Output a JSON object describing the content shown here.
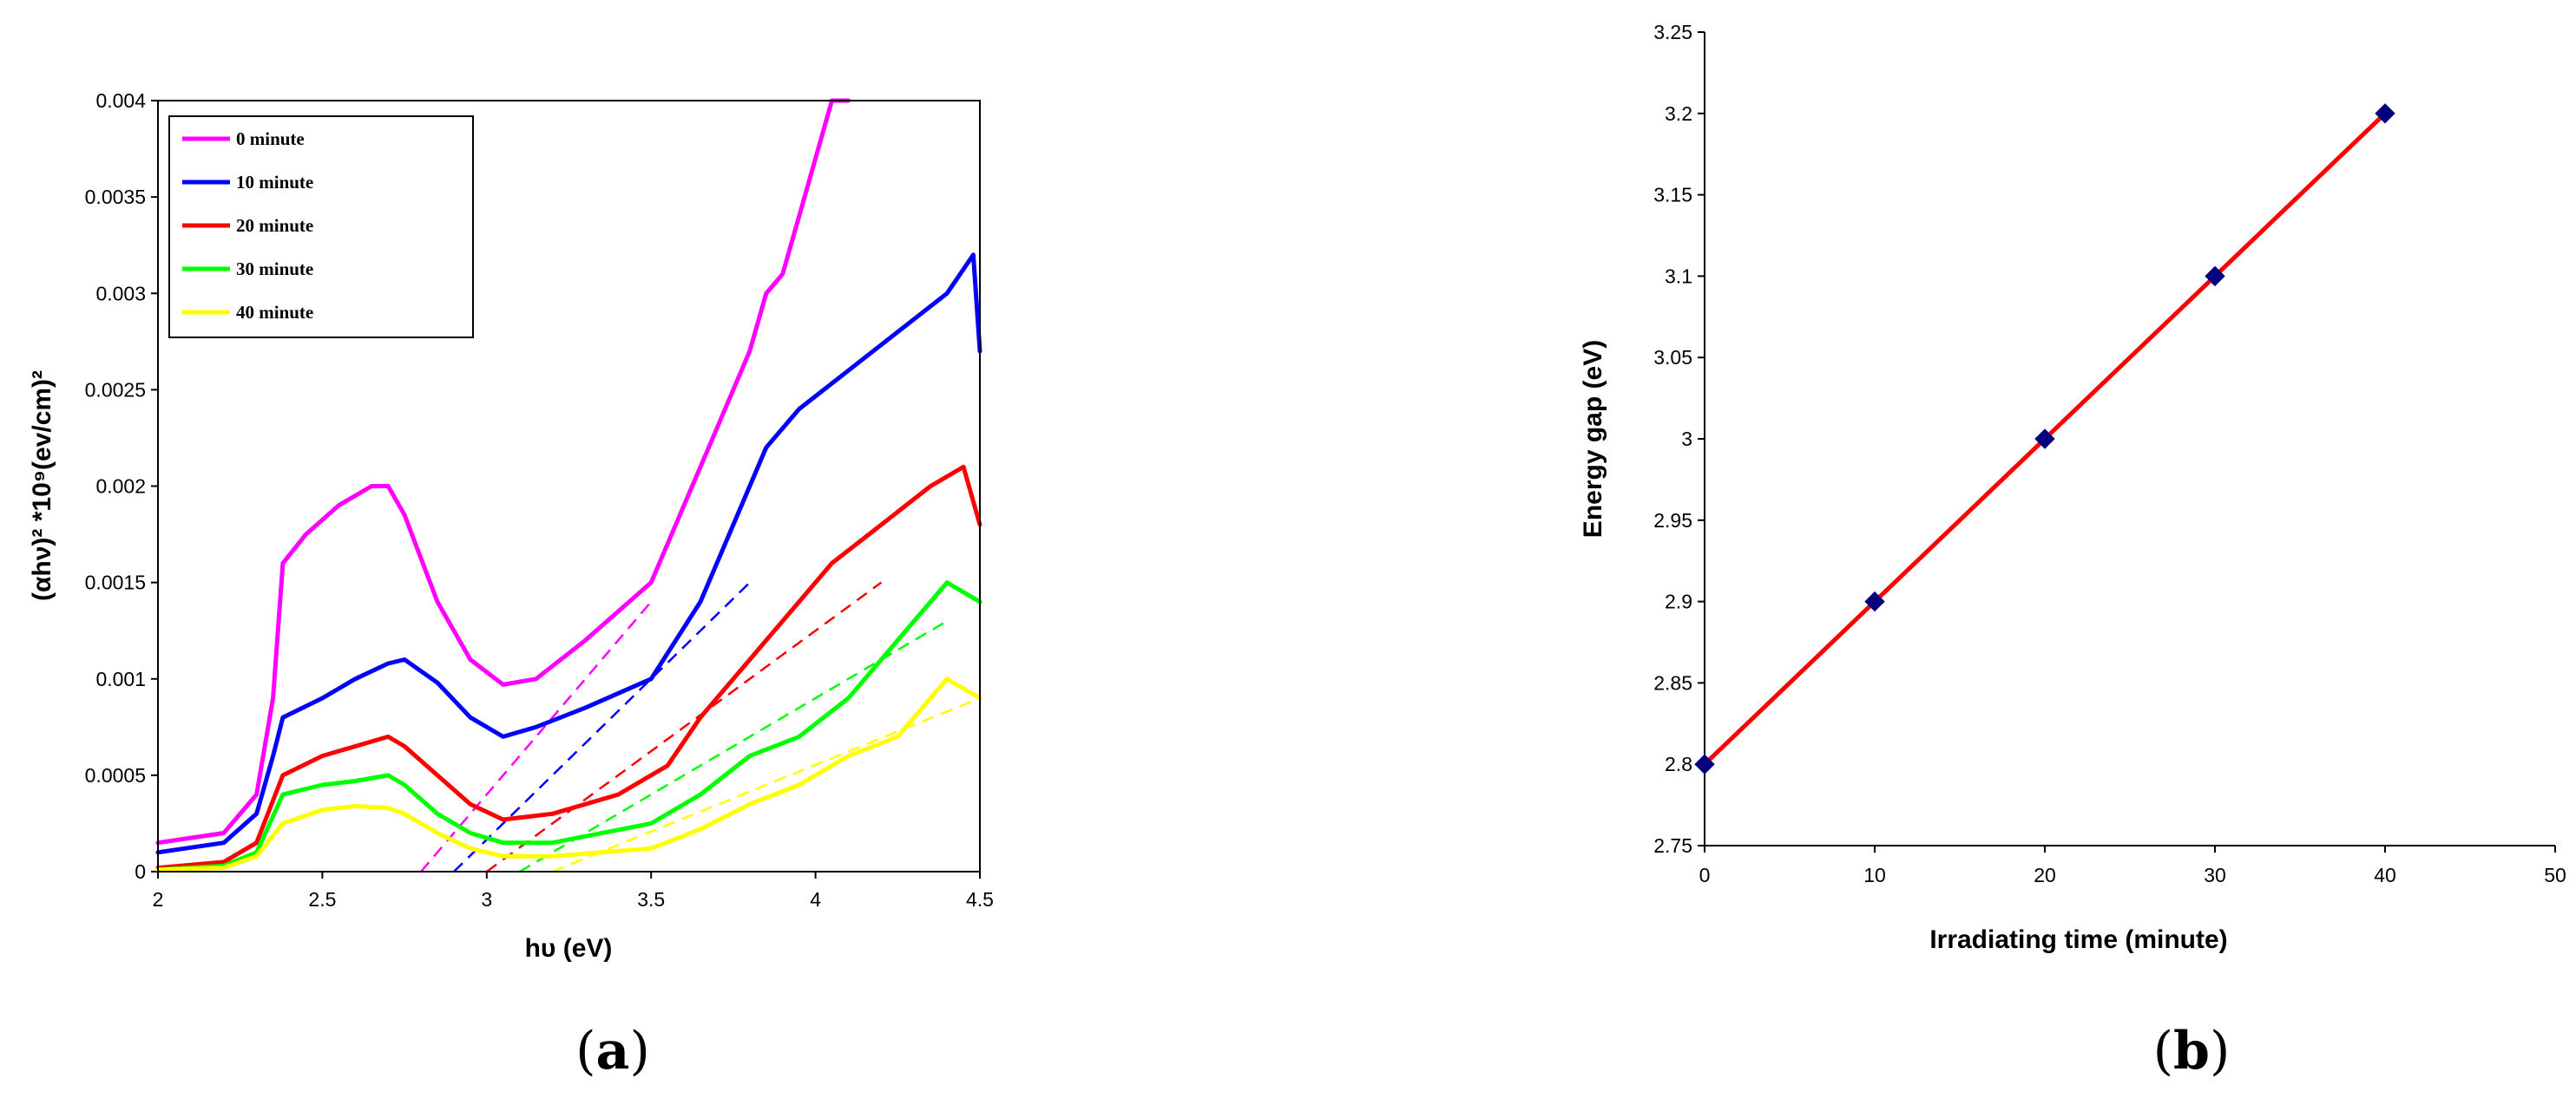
{
  "panel_labels": [
    {
      "open": "(",
      "letter": "a",
      "close": ")"
    },
    {
      "open": "(",
      "letter": "b",
      "close": ")"
    }
  ],
  "chart_data": [
    {
      "type": "line",
      "xlabel": "hυ (eV)",
      "ylabel": "(αhν)² *10⁹(ev/cm)²",
      "xlim": [
        2,
        4.5
      ],
      "ylim": [
        0,
        0.004
      ],
      "xticks": [
        "2",
        "2.5",
        "3",
        "3.5",
        "4",
        "4.5"
      ],
      "yticks": [
        "0",
        "0.0005",
        "0.001",
        "0.0015",
        "0.002",
        "0.0025",
        "0.003",
        "0.0035",
        "0.004"
      ],
      "grid": false,
      "legend_position": "top-left",
      "series": [
        {
          "name": "0 minute",
          "color": "#ff00ff",
          "x": [
            2.0,
            2.2,
            2.3,
            2.35,
            2.38,
            2.45,
            2.55,
            2.65,
            2.7,
            2.75,
            2.85,
            2.95,
            3.05,
            3.15,
            3.3,
            3.5,
            3.6,
            3.7,
            3.8,
            3.85,
            3.9,
            3.95,
            4.0,
            4.05,
            4.1
          ],
          "y": [
            0.00015,
            0.0002,
            0.0004,
            0.0009,
            0.0016,
            0.00175,
            0.0019,
            0.002,
            0.002,
            0.00185,
            0.0014,
            0.0011,
            0.00097,
            0.001,
            0.0012,
            0.0015,
            0.0019,
            0.0023,
            0.0027,
            0.003,
            0.0031,
            0.0034,
            0.0037,
            0.004,
            0.004
          ]
        },
        {
          "name": "10 minute",
          "color": "#0000ff",
          "x": [
            2.0,
            2.2,
            2.3,
            2.35,
            2.38,
            2.5,
            2.6,
            2.7,
            2.75,
            2.85,
            2.95,
            3.05,
            3.15,
            3.3,
            3.5,
            3.65,
            3.75,
            3.85,
            3.95,
            4.1,
            4.25,
            4.4,
            4.48,
            4.5
          ],
          "y": [
            0.0001,
            0.00015,
            0.0003,
            0.0006,
            0.0008,
            0.0009,
            0.001,
            0.00108,
            0.0011,
            0.00098,
            0.0008,
            0.0007,
            0.00075,
            0.00085,
            0.001,
            0.0014,
            0.0018,
            0.0022,
            0.0024,
            0.0026,
            0.0028,
            0.003,
            0.0032,
            0.0027
          ]
        },
        {
          "name": "20 minute",
          "color": "#ff0000",
          "x": [
            2.0,
            2.2,
            2.3,
            2.38,
            2.5,
            2.6,
            2.7,
            2.75,
            2.85,
            2.95,
            3.05,
            3.2,
            3.4,
            3.55,
            3.65,
            3.75,
            3.85,
            3.95,
            4.05,
            4.2,
            4.35,
            4.45,
            4.5
          ],
          "y": [
            2e-05,
            5e-05,
            0.00015,
            0.0005,
            0.0006,
            0.00065,
            0.0007,
            0.00065,
            0.0005,
            0.00035,
            0.00027,
            0.0003,
            0.0004,
            0.00055,
            0.0008,
            0.001,
            0.0012,
            0.0014,
            0.0016,
            0.0018,
            0.002,
            0.0021,
            0.0018
          ]
        },
        {
          "name": "30 minute",
          "color": "#00ff00",
          "x": [
            2.0,
            2.2,
            2.3,
            2.38,
            2.5,
            2.6,
            2.7,
            2.75,
            2.85,
            2.95,
            3.05,
            3.2,
            3.5,
            3.65,
            3.8,
            3.95,
            4.1,
            4.25,
            4.4,
            4.5
          ],
          "y": [
            1e-05,
            3e-05,
            0.0001,
            0.0004,
            0.00045,
            0.00047,
            0.0005,
            0.00045,
            0.0003,
            0.0002,
            0.00015,
            0.00015,
            0.00025,
            0.0004,
            0.0006,
            0.0007,
            0.0009,
            0.0012,
            0.0015,
            0.0014
          ]
        },
        {
          "name": "40 minute",
          "color": "#ffff00",
          "x": [
            2.0,
            2.2,
            2.3,
            2.38,
            2.5,
            2.6,
            2.7,
            2.75,
            2.85,
            2.95,
            3.05,
            3.2,
            3.5,
            3.65,
            3.8,
            3.95,
            4.1,
            4.25,
            4.4,
            4.5
          ],
          "y": [
            1e-05,
            2e-05,
            8e-05,
            0.00025,
            0.00032,
            0.00034,
            0.00033,
            0.0003,
            0.0002,
            0.00012,
            8e-05,
            8e-05,
            0.00012,
            0.00022,
            0.00035,
            0.00045,
            0.0006,
            0.0007,
            0.001,
            0.0009
          ]
        }
      ],
      "extrapolation_lines": [
        {
          "color": "#ff00ff",
          "x": [
            2.8,
            3.5
          ],
          "y": [
            0,
            0.0014
          ]
        },
        {
          "color": "#0000ff",
          "x": [
            2.9,
            3.8
          ],
          "y": [
            0,
            0.0015
          ]
        },
        {
          "color": "#ff0000",
          "x": [
            3.0,
            4.2
          ],
          "y": [
            0,
            0.0015
          ]
        },
        {
          "color": "#00ff00",
          "x": [
            3.1,
            4.4
          ],
          "y": [
            0,
            0.0013
          ]
        },
        {
          "color": "#ffff00",
          "x": [
            3.2,
            4.5
          ],
          "y": [
            0,
            0.0009
          ]
        }
      ]
    },
    {
      "type": "line",
      "xlabel": "Irradiating time (minute)",
      "ylabel": "Energy gap (eV)",
      "xlim": [
        0,
        50
      ],
      "ylim": [
        2.75,
        3.25
      ],
      "xticks": [
        "0",
        "10",
        "20",
        "30",
        "40",
        "50"
      ],
      "yticks": [
        "2.75",
        "2.8",
        "2.85",
        "2.9",
        "2.95",
        "3",
        "3.05",
        "3.1",
        "3.15",
        "3.2",
        "3.25"
      ],
      "grid": false,
      "series": [
        {
          "line_color": "#ff0000",
          "marker": "diamond",
          "marker_color": "#000080",
          "x": [
            0,
            10,
            20,
            30,
            40
          ],
          "y": [
            2.8,
            2.9,
            3.0,
            3.1,
            3.2
          ]
        }
      ]
    }
  ]
}
